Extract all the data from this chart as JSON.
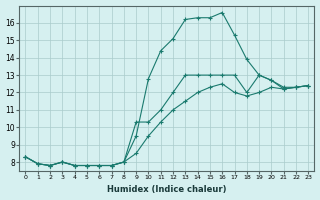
{
  "xlabel": "Humidex (Indice chaleur)",
  "background_color": "#d6f0f0",
  "grid_color": "#aacccc",
  "line_color": "#1a7a6e",
  "xlim": [
    -0.5,
    23.5
  ],
  "ylim": [
    7.5,
    17.0
  ],
  "yticks": [
    8,
    9,
    10,
    11,
    12,
    13,
    14,
    15,
    16
  ],
  "xticks": [
    0,
    1,
    2,
    3,
    4,
    5,
    6,
    7,
    8,
    9,
    10,
    11,
    12,
    13,
    14,
    15,
    16,
    17,
    18,
    19,
    20,
    21,
    22,
    23
  ],
  "line1_x": [
    0,
    1,
    2,
    3,
    4,
    5,
    6,
    7,
    8,
    9,
    10,
    11,
    12,
    13,
    14,
    15,
    16,
    17,
    18,
    19,
    20,
    21,
    22,
    23
  ],
  "line1_y": [
    8.3,
    7.9,
    7.8,
    8.0,
    7.8,
    7.8,
    7.8,
    7.8,
    8.0,
    9.5,
    12.8,
    14.4,
    15.1,
    16.2,
    16.3,
    16.3,
    16.6,
    15.3,
    13.9,
    13.0,
    12.7,
    12.2,
    12.3,
    12.4
  ],
  "line2_x": [
    0,
    1,
    2,
    3,
    4,
    5,
    6,
    7,
    8,
    9,
    10,
    11,
    12,
    13,
    14,
    15,
    16,
    17,
    18,
    19,
    20,
    21,
    22,
    23
  ],
  "line2_y": [
    8.3,
    7.9,
    7.8,
    8.0,
    7.8,
    7.8,
    7.8,
    7.8,
    8.0,
    10.3,
    10.3,
    11.0,
    12.0,
    13.0,
    13.0,
    13.0,
    13.0,
    13.0,
    12.0,
    13.0,
    12.7,
    12.3,
    12.3,
    12.4
  ],
  "line3_x": [
    0,
    1,
    2,
    3,
    4,
    5,
    6,
    7,
    8,
    9,
    10,
    11,
    12,
    13,
    14,
    15,
    16,
    17,
    18,
    19,
    20,
    21,
    22,
    23
  ],
  "line3_y": [
    8.3,
    7.9,
    7.8,
    8.0,
    7.8,
    7.8,
    7.8,
    7.8,
    8.0,
    8.5,
    9.5,
    10.3,
    11.0,
    11.5,
    12.0,
    12.3,
    12.5,
    12.0,
    11.8,
    12.0,
    12.3,
    12.2,
    12.3,
    12.4
  ]
}
